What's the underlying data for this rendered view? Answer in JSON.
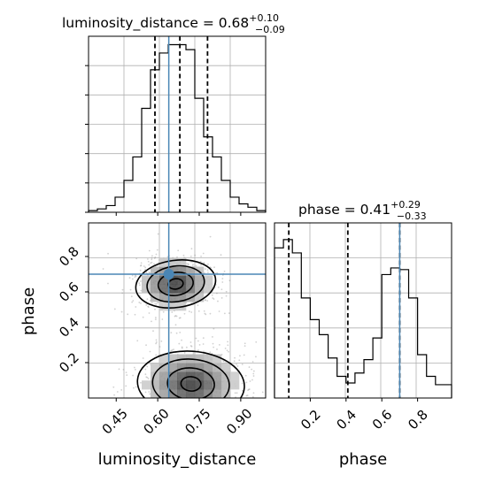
{
  "chart_data": {
    "type": "corner",
    "parameters": [
      "luminosity_distance",
      "phase"
    ],
    "truth_color": "#4a86b5",
    "panels": [
      {
        "id": "luminosity_distance_hist",
        "type": "histogram",
        "title_prefix": "luminosity_distance = 0.68",
        "title_sup": "+0.10",
        "title_sub": "−0.09",
        "xlim": [
          0.35,
          0.99
        ],
        "ymax": 1.05,
        "bins": [
          0.35,
          0.382,
          0.414,
          0.446,
          0.478,
          0.51,
          0.542,
          0.574,
          0.606,
          0.638,
          0.67,
          0.702,
          0.734,
          0.766,
          0.798,
          0.83,
          0.862,
          0.894,
          0.926,
          0.958,
          0.99
        ],
        "counts": [
          0.01,
          0.02,
          0.04,
          0.09,
          0.19,
          0.33,
          0.62,
          0.85,
          0.95,
          1.0,
          1.0,
          0.97,
          0.68,
          0.45,
          0.33,
          0.19,
          0.09,
          0.05,
          0.03,
          0.01
        ],
        "quantiles": [
          0.59,
          0.68,
          0.78
        ],
        "truth": 0.64
      },
      {
        "id": "phase_hist",
        "type": "histogram",
        "title_prefix": "phase = 0.41",
        "title_sup": "+0.29",
        "title_sub": "−0.33",
        "xlim": [
          0.0,
          0.99
        ],
        "ymax": 1.05,
        "xticks": [
          "0.2",
          "0.4",
          "0.6",
          "0.8"
        ],
        "xtick_values": [
          0.2,
          0.4,
          0.6,
          0.8
        ],
        "xlabel": "phase",
        "bins": [
          0.0,
          0.05,
          0.1,
          0.15,
          0.2,
          0.25,
          0.3,
          0.35,
          0.4,
          0.45,
          0.5,
          0.55,
          0.6,
          0.65,
          0.7,
          0.75,
          0.8,
          0.85,
          0.9,
          0.95,
          0.99
        ],
        "counts": [
          0.9,
          0.95,
          0.87,
          0.6,
          0.47,
          0.38,
          0.24,
          0.13,
          0.09,
          0.15,
          0.23,
          0.36,
          0.74,
          0.78,
          0.77,
          0.6,
          0.26,
          0.13,
          0.08,
          0.08
        ],
        "quantiles": [
          0.08,
          0.41,
          0.7
        ],
        "truth": 0.7
      },
      {
        "id": "joint",
        "type": "2d",
        "xlim": [
          0.35,
          0.99
        ],
        "ylim": [
          0.0,
          0.99
        ],
        "xticks": [
          "0.45",
          "0.60",
          "0.75",
          "0.90"
        ],
        "xtick_values": [
          0.45,
          0.6,
          0.75,
          0.9
        ],
        "yticks": [
          "0.2",
          "0.4",
          "0.6",
          "0.8"
        ],
        "ytick_values": [
          0.2,
          0.4,
          0.6,
          0.8
        ],
        "xlabel": "luminosity_distance",
        "ylabel": "phase",
        "truth": [
          0.64,
          0.7
        ],
        "modes": [
          {
            "x": 0.665,
            "y": 0.645,
            "sx": 0.06,
            "sy": 0.065,
            "weight": 1.0
          },
          {
            "x": 0.72,
            "y": 0.08,
            "sx": 0.08,
            "sy": 0.09,
            "weight": 0.95
          }
        ]
      }
    ]
  }
}
